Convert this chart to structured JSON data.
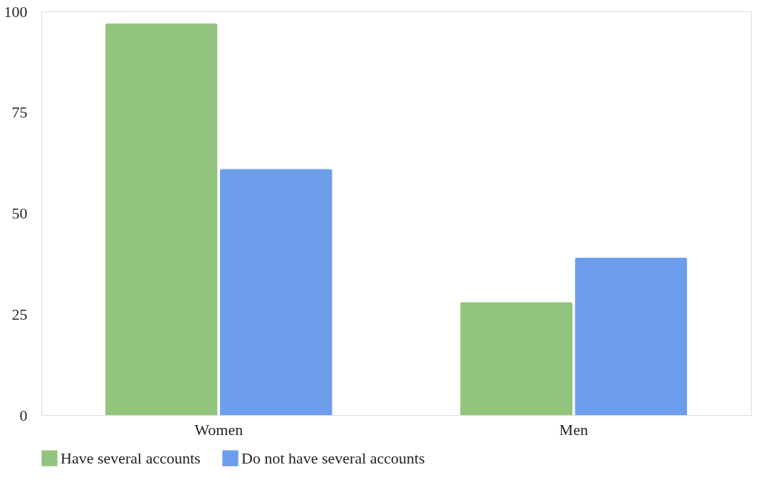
{
  "chart_data": {
    "type": "bar",
    "categories": [
      "Women",
      "Men"
    ],
    "series": [
      {
        "name": "Have several accounts",
        "color": "#93c47d",
        "values": [
          97,
          28
        ]
      },
      {
        "name": "Do not have several accounts",
        "color": "#6d9eeb",
        "values": [
          61,
          39
        ]
      }
    ],
    "ylim": [
      0,
      100
    ],
    "yticks": [
      0,
      25,
      50,
      75,
      100
    ],
    "grid": false,
    "legend": "bottom"
  }
}
